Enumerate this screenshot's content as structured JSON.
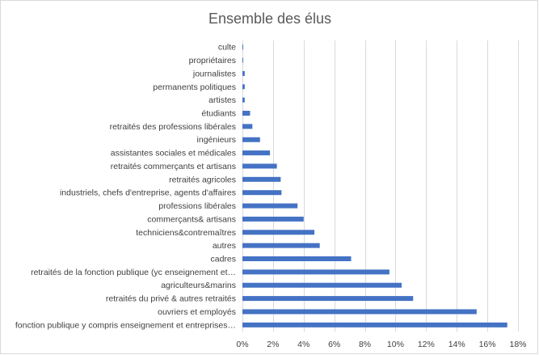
{
  "chart_data": {
    "type": "bar",
    "orientation": "horizontal",
    "title": "Ensemble des élus",
    "xlabel": "",
    "ylabel": "",
    "xlim": [
      0,
      18
    ],
    "x_ticks": [
      "0%",
      "2%",
      "4%",
      "6%",
      "8%",
      "10%",
      "12%",
      "14%",
      "16%",
      "18%"
    ],
    "grid": true,
    "bar_color": "#4472c4",
    "categories": [
      "culte",
      "propriétaires",
      "journalistes",
      "permanents politiques",
      "artistes",
      "étudiants",
      "retraités des professions libérales",
      "ingénieurs",
      "assistantes sociales et médicales",
      "retraités commerçants et artisans",
      "retraités agricoles",
      "industriels, chefs d'entreprise, agents d'affaires",
      "professions libérales",
      "commerçants& artisans",
      "techniciens&contremaîtres",
      "autres",
      "cadres",
      "retraités de la fonction publique (yc enseignement et…",
      "agriculteurs&marins",
      "retraités du privé & autres retraités",
      "ouvriers et employés",
      "fonction publique y compris enseignement et entreprises…"
    ],
    "values": [
      0.05,
      0.05,
      0.15,
      0.15,
      0.15,
      0.5,
      0.65,
      1.15,
      1.8,
      2.25,
      2.5,
      2.55,
      3.6,
      4.0,
      4.7,
      5.05,
      7.1,
      9.6,
      10.4,
      11.15,
      15.3,
      17.3
    ]
  }
}
